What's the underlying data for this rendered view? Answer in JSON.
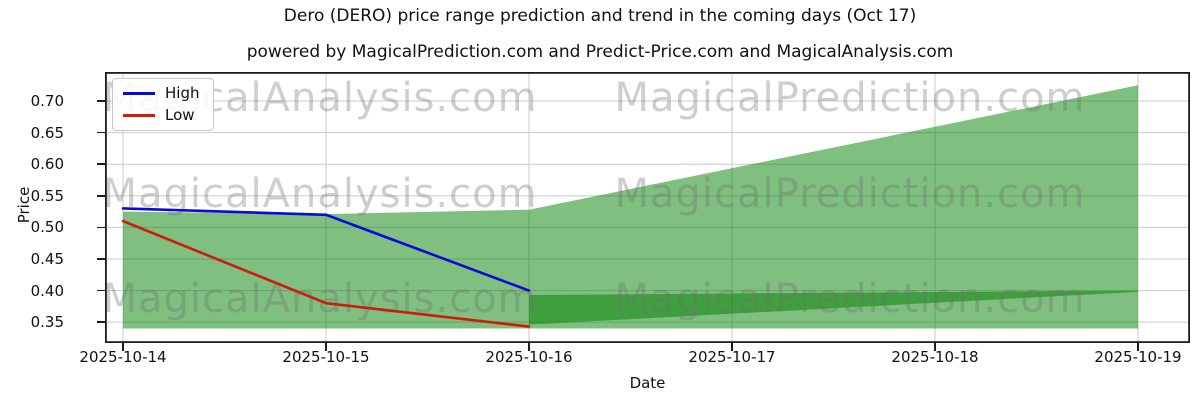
{
  "title": "Dero (DERO) price range prediction and trend in the coming days (Oct 17)",
  "subtitle": "powered by MagicalPrediction.com and Predict-Price.com and MagicalAnalysis.com",
  "watermarks": {
    "left": "MagicalAnalysis.com",
    "right": "MagicalPrediction.com",
    "color": "#6f6f6f",
    "opacity": 0.34
  },
  "legend": {
    "items": [
      {
        "label": "High",
        "color": "#0a0ad8"
      },
      {
        "label": "Low",
        "color": "#cf1a10"
      }
    ]
  },
  "chart_data": {
    "type": "line",
    "title": "Dero (DERO) price range prediction and trend in the coming days (Oct 17)",
    "xlabel": "Date",
    "ylabel": "Price",
    "x_categories": [
      "2025-10-14",
      "2025-10-15",
      "2025-10-16",
      "2025-10-17",
      "2025-10-18",
      "2025-10-19"
    ],
    "yticks": [
      "0.35",
      "0.40",
      "0.45",
      "0.50",
      "0.55",
      "0.60",
      "0.65",
      "0.70"
    ],
    "ylim": [
      0.317,
      0.746
    ],
    "grid": true,
    "grid_color": "#cbcbcb",
    "legend_position": "upper left",
    "series": [
      {
        "name": "High",
        "color": "#0a0ad8",
        "x": [
          0,
          1,
          2
        ],
        "values": [
          0.53,
          0.52,
          0.4
        ]
      },
      {
        "name": "Low",
        "color": "#cf1a10",
        "x": [
          0,
          1,
          2
        ],
        "values": [
          0.51,
          0.38,
          0.343
        ]
      }
    ],
    "bands": [
      {
        "name": "prediction-range-outer",
        "fill": "#008000",
        "alpha": 0.5,
        "x": [
          0,
          1,
          2,
          5
        ],
        "upper": [
          0.525,
          0.521,
          0.528,
          0.725
        ],
        "lower": [
          0.34,
          0.34,
          0.34,
          0.34
        ]
      },
      {
        "name": "prediction-range-inner",
        "fill": "#008000",
        "alpha": 0.5,
        "x": [
          2,
          5
        ],
        "upper": [
          0.393,
          0.4
        ],
        "lower": [
          0.346,
          0.398
        ]
      }
    ]
  }
}
